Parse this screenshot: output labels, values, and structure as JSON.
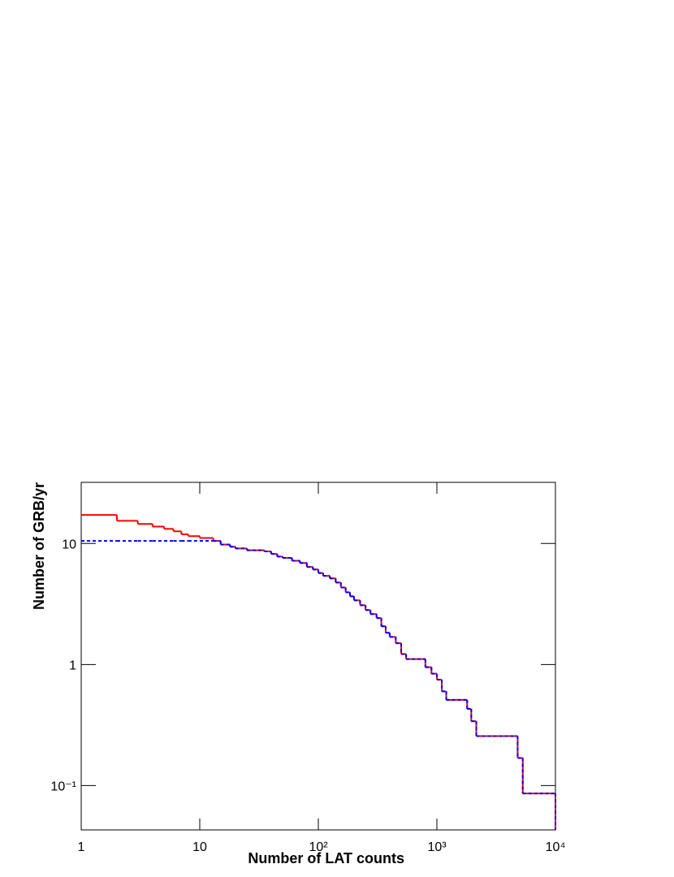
{
  "chart_data": {
    "type": "histogram",
    "xlabel": "Number of LAT counts",
    "ylabel": "Number of GRB/yr",
    "xlog": true,
    "ylog": true,
    "xlim": [
      1,
      10000
    ],
    "ylim": [
      0.043,
      32
    ],
    "xticks": [
      1,
      10,
      {
        "value": 100,
        "label": "10²"
      },
      {
        "value": 1000,
        "label": "10³"
      },
      {
        "value": 10000,
        "label": "10⁴"
      }
    ],
    "yticks": [
      {
        "value": 0.1,
        "label": "10⁻¹"
      },
      1,
      10
    ],
    "bins": [
      1,
      2,
      3,
      4,
      5,
      6,
      7,
      8,
      10,
      13,
      15,
      18,
      20,
      25,
      35,
      40,
      45,
      50,
      60,
      70,
      80,
      90,
      100,
      110,
      125,
      140,
      155,
      170,
      185,
      200,
      225,
      250,
      275,
      310,
      340,
      370,
      400,
      450,
      500,
      550,
      800,
      900,
      1000,
      1100,
      1200,
      1800,
      1950,
      2150,
      4800,
      5300,
      10000
    ],
    "series": [
      {
        "color": "#ff0000",
        "style": "solid",
        "values": [
          17.2,
          15.4,
          14.5,
          13.8,
          13.2,
          12.6,
          11.9,
          11.5,
          11.1,
          10.5,
          9.8,
          9.4,
          9.1,
          8.8,
          8.6,
          8.2,
          7.8,
          7.6,
          7.2,
          6.9,
          6.4,
          6.1,
          5.7,
          5.4,
          5.15,
          4.76,
          4.33,
          3.95,
          3.66,
          3.39,
          3.09,
          2.82,
          2.61,
          2.42,
          2.07,
          1.83,
          1.69,
          1.5,
          1.22,
          1.11,
          0.95,
          0.84,
          0.75,
          0.6,
          0.51,
          0.43,
          0.34,
          0.256,
          0.169,
          0.086
        ]
      },
      {
        "color": "#0000ff",
        "style": "dashed",
        "values": [
          10.5,
          10.5,
          10.5,
          10.5,
          10.5,
          10.5,
          10.5,
          10.5,
          10.5,
          10.5,
          9.8,
          9.4,
          9.1,
          8.8,
          8.6,
          8.2,
          7.8,
          7.6,
          7.2,
          6.9,
          6.4,
          6.1,
          5.7,
          5.4,
          5.15,
          4.76,
          4.33,
          3.95,
          3.66,
          3.39,
          3.09,
          2.82,
          2.61,
          2.42,
          2.07,
          1.83,
          1.69,
          1.5,
          1.22,
          1.11,
          0.95,
          0.84,
          0.75,
          0.6,
          0.51,
          0.43,
          0.34,
          0.256,
          0.169,
          0.086
        ]
      }
    ]
  }
}
